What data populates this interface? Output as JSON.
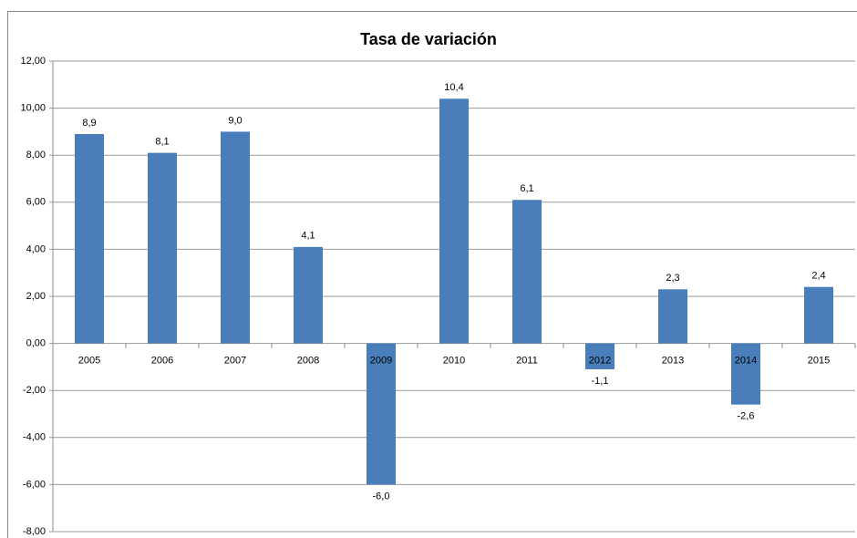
{
  "chart_data": {
    "type": "bar",
    "title": "Tasa de variación",
    "categories": [
      "2005",
      "2006",
      "2007",
      "2008",
      "2009",
      "2010",
      "2011",
      "2012",
      "2013",
      "2014",
      "2015"
    ],
    "values": [
      8.9,
      8.1,
      9.0,
      4.1,
      -6.0,
      10.4,
      6.1,
      -1.1,
      2.3,
      -2.6,
      2.4
    ],
    "value_labels": [
      "8,9",
      "8,1",
      "9,0",
      "4,1",
      "-6,0",
      "10,4",
      "6,1",
      "-1,1",
      "2,3",
      "-2,6",
      "2,4"
    ],
    "color": "#4a7ebb",
    "ylim": [
      -8,
      12
    ],
    "yticks": [
      {
        "value": -8,
        "label": "-8,00"
      },
      {
        "value": -6,
        "label": "-6,00"
      },
      {
        "value": -4,
        "label": "-4,00"
      },
      {
        "value": -2,
        "label": "-2,00"
      },
      {
        "value": 0,
        "label": "0,00"
      },
      {
        "value": 2,
        "label": "2,00"
      },
      {
        "value": 4,
        "label": "4,00"
      },
      {
        "value": 6,
        "label": "6,00"
      },
      {
        "value": 8,
        "label": "8,00"
      },
      {
        "value": 10,
        "label": "10,00"
      },
      {
        "value": 12,
        "label": "12,00"
      }
    ],
    "grid": true
  }
}
